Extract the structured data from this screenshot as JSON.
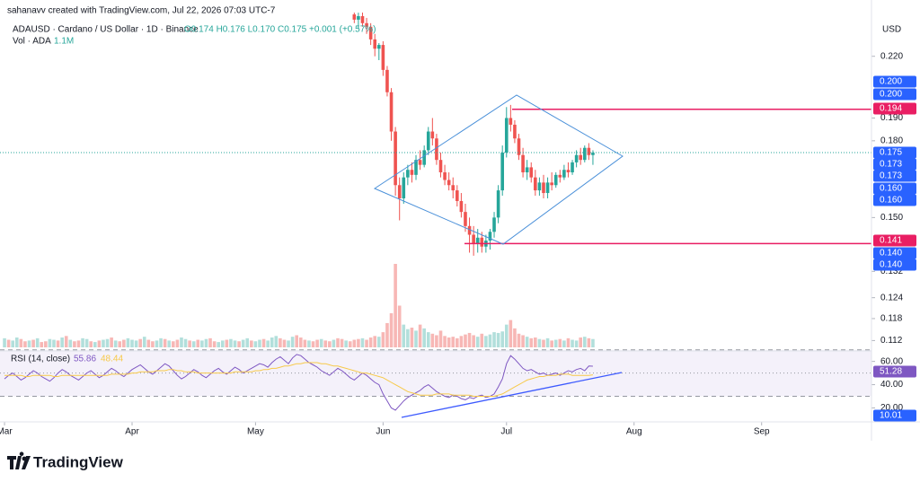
{
  "header": {
    "watermark": "sahanavv created with TradingView.com, Jul 22, 2026 07:03 UTC-7",
    "symbol": "ADAUSD · Cardano / US Dollar · 1D · Binance",
    "ohlc": "O0.174 H0.176 L0.170 C0.175 +0.001 (+0.57%)",
    "vol_label": "Vol · ADA",
    "vol_value": "1.1M",
    "rsi_label": "RSI (14, close)",
    "rsi_value": "55.86",
    "rsi_ma_value": "48.44"
  },
  "footer": {
    "brand": "TradingView"
  },
  "chart_data": [
    {
      "type": "candlestick",
      "currency": "USD",
      "log_scale": true,
      "ylim": [
        0.1095,
        0.242
      ],
      "yticks": [
        {
          "value": 0.22,
          "label": "0.220"
        },
        {
          "value": 0.19,
          "label": "0.190"
        },
        {
          "value": 0.18,
          "label": "0.180"
        },
        {
          "value": 0.15,
          "label": "0.150"
        },
        {
          "value": 0.132,
          "label": "0.132"
        },
        {
          "value": 0.124,
          "label": "0.124"
        },
        {
          "value": 0.118,
          "label": "0.118"
        },
        {
          "value": 0.112,
          "label": "0.112"
        }
      ],
      "xlim": [
        -1.1,
        210.7
      ],
      "xticks": [
        {
          "value": 0,
          "label": "Mar"
        },
        {
          "value": 31,
          "label": "Apr"
        },
        {
          "value": 61,
          "label": "May"
        },
        {
          "value": 92,
          "label": "Jun"
        },
        {
          "value": 122,
          "label": "Jul"
        },
        {
          "value": 153,
          "label": "Aug"
        },
        {
          "value": 184,
          "label": "Sep"
        }
      ],
      "up_color": "#26a69a",
      "down_color": "#ef5350",
      "x": [
        85,
        86,
        87,
        88,
        89,
        90,
        91,
        92,
        93,
        94,
        95,
        96,
        97,
        98,
        99,
        100,
        101,
        102,
        103,
        104,
        105,
        106,
        107,
        108,
        109,
        110,
        111,
        112,
        113,
        114,
        115,
        116,
        117,
        118,
        119,
        120,
        121,
        122,
        123,
        124,
        125,
        126,
        127,
        128,
        129,
        130,
        131,
        132,
        133,
        134,
        135,
        136,
        137,
        138,
        139,
        140,
        141,
        142,
        143
      ],
      "open": [
        0.243,
        0.24,
        0.242,
        0.238,
        0.236,
        0.229,
        0.224,
        0.226,
        0.213,
        0.202,
        0.184,
        0.162,
        0.157,
        0.165,
        0.168,
        0.166,
        0.172,
        0.17,
        0.176,
        0.184,
        0.181,
        0.172,
        0.167,
        0.164,
        0.162,
        0.16,
        0.156,
        0.152,
        0.147,
        0.144,
        0.141,
        0.143,
        0.14,
        0.142,
        0.145,
        0.15,
        0.16,
        0.175,
        0.19,
        0.187,
        0.181,
        0.174,
        0.167,
        0.169,
        0.165,
        0.16,
        0.163,
        0.159,
        0.163,
        0.162,
        0.166,
        0.165,
        0.168,
        0.167,
        0.171,
        0.174,
        0.172,
        0.177,
        0.174
      ],
      "high": [
        0.248,
        0.244,
        0.245,
        0.241,
        0.238,
        0.232,
        0.227,
        0.228,
        0.215,
        0.204,
        0.186,
        0.165,
        0.167,
        0.17,
        0.171,
        0.174,
        0.176,
        0.178,
        0.186,
        0.19,
        0.183,
        0.175,
        0.17,
        0.167,
        0.165,
        0.162,
        0.159,
        0.155,
        0.15,
        0.147,
        0.146,
        0.145,
        0.144,
        0.146,
        0.152,
        0.162,
        0.178,
        0.195,
        0.196,
        0.189,
        0.183,
        0.177,
        0.172,
        0.171,
        0.168,
        0.165,
        0.166,
        0.165,
        0.167,
        0.167,
        0.168,
        0.17,
        0.171,
        0.172,
        0.176,
        0.177,
        0.178,
        0.179,
        0.176
      ],
      "low": [
        0.238,
        0.235,
        0.236,
        0.232,
        0.226,
        0.22,
        0.218,
        0.21,
        0.2,
        0.18,
        0.158,
        0.149,
        0.155,
        0.162,
        0.163,
        0.164,
        0.168,
        0.169,
        0.174,
        0.178,
        0.17,
        0.165,
        0.162,
        0.16,
        0.157,
        0.154,
        0.15,
        0.145,
        0.138,
        0.137,
        0.138,
        0.138,
        0.138,
        0.139,
        0.143,
        0.148,
        0.158,
        0.173,
        0.184,
        0.179,
        0.172,
        0.165,
        0.164,
        0.163,
        0.158,
        0.158,
        0.157,
        0.157,
        0.16,
        0.161,
        0.163,
        0.164,
        0.165,
        0.166,
        0.169,
        0.17,
        0.171,
        0.172,
        0.17
      ],
      "close": [
        0.24,
        0.242,
        0.238,
        0.236,
        0.229,
        0.224,
        0.226,
        0.213,
        0.202,
        0.184,
        0.162,
        0.157,
        0.165,
        0.168,
        0.166,
        0.172,
        0.17,
        0.176,
        0.184,
        0.181,
        0.172,
        0.167,
        0.164,
        0.162,
        0.16,
        0.156,
        0.152,
        0.147,
        0.144,
        0.141,
        0.143,
        0.14,
        0.142,
        0.145,
        0.15,
        0.16,
        0.175,
        0.19,
        0.187,
        0.181,
        0.174,
        0.167,
        0.169,
        0.165,
        0.16,
        0.163,
        0.159,
        0.163,
        0.162,
        0.166,
        0.165,
        0.168,
        0.167,
        0.171,
        0.174,
        0.172,
        0.177,
        0.174,
        0.175
      ],
      "price_labels": [
        {
          "value": 0.2,
          "label": "0.200",
          "color": "#2962ff"
        },
        {
          "value": 0.2,
          "label": "0.200",
          "color": "#2962ff"
        },
        {
          "value": 0.194,
          "label": "0.194",
          "color": "#e91e63"
        },
        {
          "value": 0.175,
          "label": "0.175",
          "color": "#2962ff"
        },
        {
          "value": 0.173,
          "label": "0.173",
          "color": "#2962ff"
        },
        {
          "value": 0.173,
          "label": "0.173",
          "color": "#2962ff"
        },
        {
          "value": 0.16,
          "label": "0.160",
          "color": "#2962ff"
        },
        {
          "value": 0.16,
          "label": "0.160",
          "color": "#2962ff"
        },
        {
          "value": 0.141,
          "label": "0.141",
          "color": "#e91e63"
        },
        {
          "value": 0.14,
          "label": "0.140",
          "color": "#2962ff"
        },
        {
          "value": 0.14,
          "label": "0.140",
          "color": "#2962ff"
        }
      ]
    },
    {
      "type": "bar",
      "values": [
        1.2,
        1.0,
        0.9,
        1.3,
        1.1,
        0.8,
        0.9,
        1.0,
        1.2,
        0.7,
        0.8,
        1.1,
        1.0,
        0.9,
        1.3,
        1.5,
        1.0,
        0.8,
        0.9,
        1.2,
        1.1,
        0.8,
        0.7,
        0.9,
        1.0,
        1.1,
        1.3,
        0.9,
        0.8,
        1.0,
        1.2,
        1.0,
        0.9,
        1.1,
        1.4,
        1.0,
        0.8,
        0.9,
        1.2,
        1.1,
        0.9,
        0.8,
        1.0,
        1.3,
        1.1,
        0.9,
        0.8,
        1.0,
        0.9,
        1.1,
        1.2,
        0.8,
        0.7,
        0.9,
        1.0,
        1.1,
        0.9,
        0.8,
        1.0,
        1.2,
        0.9,
        0.8,
        1.0,
        1.1,
        0.9,
        1.3,
        1.5,
        1.2,
        1.0,
        0.9,
        1.4,
        1.6,
        1.3,
        1.0,
        0.9,
        0.8,
        1.0,
        1.1,
        0.9,
        0.8,
        1.0,
        1.2,
        1.1,
        0.9,
        0.8,
        1.0,
        1.1,
        1.2,
        1.0,
        1.3,
        1.5,
        1.4,
        2.0,
        3.2,
        4.5,
        11.0,
        5.5,
        3.0,
        2.4,
        2.6,
        2.2,
        3.0,
        2.5,
        2.0,
        1.8,
        1.6,
        2.2,
        1.5,
        1.3,
        1.4,
        1.2,
        1.5,
        1.7,
        1.9,
        1.6,
        1.4,
        1.8,
        1.5,
        1.7,
        2.0,
        1.9,
        2.1,
        3.0,
        3.6,
        2.5,
        1.8,
        1.6,
        1.4,
        1.2,
        1.3,
        1.1,
        1.0,
        1.2,
        0.9,
        1.0,
        1.1,
        0.9,
        1.2,
        1.0,
        0.9,
        1.3,
        1.4,
        1.2,
        1.1
      ],
      "colors": [
        "#b2dfdb",
        "#f7b7b5",
        "#b2dfdb",
        "#b2dfdb",
        "#f7b7b5",
        "#f7b7b5",
        "#b2dfdb",
        "#f7b7b5",
        "#b2dfdb",
        "#f7b7b5",
        "#f7b7b5",
        "#b2dfdb",
        "#b2dfdb",
        "#f7b7b5",
        "#b2dfdb",
        "#f7b7b5",
        "#b2dfdb",
        "#f7b7b5",
        "#f7b7b5",
        "#b2dfdb",
        "#b2dfdb",
        "#f7b7b5",
        "#b2dfdb",
        "#f7b7b5",
        "#b2dfdb",
        "#b2dfdb",
        "#f7b7b5",
        "#b2dfdb",
        "#f7b7b5",
        "#f7b7b5",
        "#b2dfdb",
        "#b2dfdb",
        "#b2dfdb",
        "#f7b7b5",
        "#b2dfdb",
        "#f7b7b5",
        "#f7b7b5",
        "#b2dfdb",
        "#b2dfdb",
        "#f7b7b5",
        "#b2dfdb",
        "#f7b7b5",
        "#f7b7b5",
        "#b2dfdb",
        "#b2dfdb",
        "#f7b7b5",
        "#b2dfdb",
        "#f7b7b5",
        "#b2dfdb",
        "#b2dfdb",
        "#f7b7b5",
        "#f7b7b5",
        "#b2dfdb",
        "#b2dfdb",
        "#f7b7b5",
        "#b2dfdb",
        "#b2dfdb",
        "#f7b7b5",
        "#b2dfdb",
        "#b2dfdb",
        "#f7b7b5",
        "#b2dfdb",
        "#b2dfdb",
        "#f7b7b5",
        "#b2dfdb",
        "#b2dfdb",
        "#b2dfdb",
        "#f7b7b5",
        "#f7b7b5",
        "#b2dfdb",
        "#b2dfdb",
        "#f7b7b5",
        "#f7b7b5",
        "#f7b7b5",
        "#b2dfdb",
        "#f7b7b5",
        "#f7b7b5",
        "#b2dfdb",
        "#f7b7b5",
        "#f7b7b5",
        "#b2dfdb",
        "#f7b7b5",
        "#f7b7b5",
        "#b2dfdb",
        "#f7b7b5",
        "#f7b7b5",
        "#f7b7b5",
        "#b2dfdb",
        "#f7b7b5",
        "#f7b7b5",
        "#f7b7b5",
        "#b2dfdb",
        "#f7b7b5",
        "#f7b7b5",
        "#f7b7b5",
        "#f7b7b5",
        "#f7b7b5",
        "#b2dfdb",
        "#b2dfdb",
        "#f7b7b5",
        "#b2dfdb",
        "#f7b7b5",
        "#b2dfdb",
        "#b2dfdb",
        "#f7b7b5",
        "#f7b7b5",
        "#f7b7b5",
        "#f7b7b5",
        "#f7b7b5",
        "#f7b7b5",
        "#f7b7b5",
        "#f7b7b5",
        "#f7b7b5",
        "#f7b7b5",
        "#f7b7b5",
        "#b2dfdb",
        "#f7b7b5",
        "#b2dfdb",
        "#b2dfdb",
        "#b2dfdb",
        "#b2dfdb",
        "#b2dfdb",
        "#b2dfdb",
        "#f7b7b5",
        "#f7b7b5",
        "#f7b7b5",
        "#f7b7b5",
        "#b2dfdb",
        "#f7b7b5",
        "#f7b7b5",
        "#b2dfdb",
        "#f7b7b5",
        "#b2dfdb",
        "#f7b7b5",
        "#b2dfdb",
        "#f7b7b5",
        "#b2dfdb",
        "#f7b7b5",
        "#b2dfdb",
        "#b2dfdb",
        "#f7b7b5",
        "#b2dfdb",
        "#f7b7b5",
        "#b2dfdb"
      ]
    },
    {
      "type": "line",
      "ylim": [
        8,
        69
      ],
      "yticks": [
        {
          "value": 60,
          "label": "60.00"
        },
        {
          "value": 40,
          "label": "40.00"
        },
        {
          "value": 20,
          "label": "20.00"
        }
      ],
      "levels": [
        70,
        50,
        30
      ],
      "band_color": "#ede7f6",
      "series": [
        {
          "color": "#7e57c2",
          "values": [
            45,
            48,
            50,
            47,
            44,
            46,
            49,
            52,
            50,
            47,
            45,
            43,
            46,
            50,
            53,
            51,
            48,
            46,
            44,
            47,
            50,
            52,
            49,
            46,
            48,
            51,
            54,
            52,
            49,
            47,
            50,
            53,
            55,
            57,
            54,
            51,
            49,
            52,
            55,
            58,
            56,
            52,
            48,
            45,
            47,
            50,
            53,
            51,
            48,
            46,
            49,
            52,
            54,
            51,
            49,
            52,
            55,
            53,
            50,
            52,
            54,
            56,
            58,
            57,
            55,
            59,
            62,
            64,
            61,
            58,
            63,
            66,
            65,
            62,
            59,
            57,
            55,
            52,
            50,
            48,
            51,
            54,
            52,
            49,
            46,
            44,
            47,
            50,
            48,
            45,
            42,
            40,
            32,
            26,
            20,
            18,
            22,
            26,
            29,
            31,
            33,
            35,
            38,
            40,
            37,
            34,
            32,
            30,
            29,
            31,
            30,
            28,
            27,
            29,
            28,
            30,
            31,
            29,
            30,
            32,
            38,
            45,
            58,
            65,
            62,
            58,
            54,
            52,
            53,
            51,
            49,
            50,
            48,
            49,
            50,
            48,
            50,
            52,
            51,
            53,
            54,
            52,
            56,
            55.86
          ]
        },
        {
          "color": "#f7c948",
          "values": [
            48,
            48,
            48,
            48,
            48,
            47,
            47,
            48,
            48,
            48,
            48,
            48,
            47,
            47,
            48,
            48,
            48,
            48,
            48,
            48,
            48,
            48,
            48,
            48,
            48,
            48,
            49,
            49,
            49,
            49,
            49,
            50,
            50,
            51,
            51,
            51,
            51,
            52,
            52,
            52,
            53,
            53,
            52,
            52,
            51,
            51,
            51,
            50,
            50,
            50,
            50,
            50,
            50,
            50,
            50,
            50,
            51,
            51,
            51,
            51,
            51,
            52,
            52,
            53,
            53,
            54,
            54,
            55,
            56,
            56,
            57,
            58,
            58,
            59,
            59,
            59,
            59,
            58,
            58,
            57,
            56,
            56,
            55,
            54,
            53,
            52,
            51,
            50,
            50,
            49,
            48,
            47,
            46,
            44,
            42,
            40,
            38,
            36,
            34,
            33,
            32,
            31,
            31,
            31,
            31,
            32,
            32,
            32,
            32,
            31,
            31,
            31,
            31,
            31,
            30,
            30,
            30,
            30,
            30,
            30,
            31,
            32,
            34,
            36,
            38,
            40,
            42,
            44,
            45,
            46,
            47,
            47,
            48,
            48,
            48,
            49,
            49,
            49,
            48,
            48,
            48,
            48,
            48,
            48.44
          ]
        }
      ],
      "rsi_labels": [
        {
          "value": 51.28,
          "color": "#7e57c2"
        },
        {
          "value": 10.01,
          "color": "#2962ff"
        }
      ]
    }
  ]
}
